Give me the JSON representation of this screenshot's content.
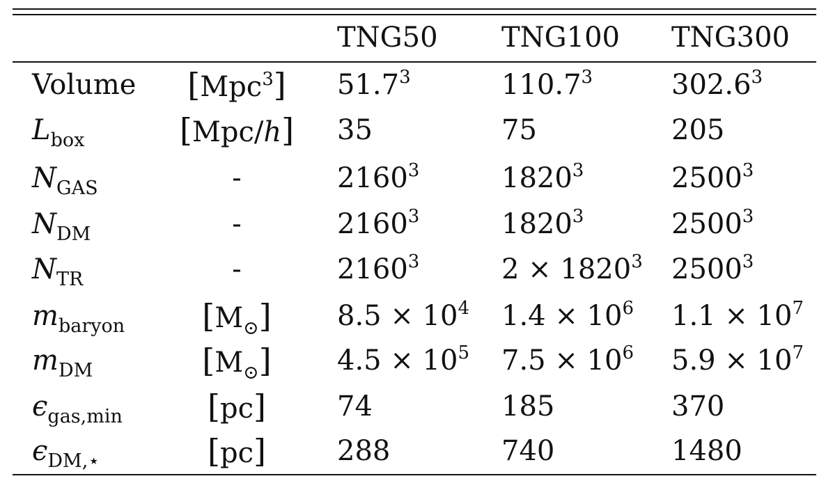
{
  "table": {
    "columns": [
      "TNG50",
      "TNG100",
      "TNG300"
    ],
    "rows": [
      {
        "label": "Volume",
        "unit": "Mpc",
        "unit_sup": "3",
        "unit_it": "",
        "v": [
          {
            "b": "51.7",
            "e": "3"
          },
          {
            "b": "110.7",
            "e": "3"
          },
          {
            "b": "302.6",
            "e": "3"
          }
        ]
      },
      {
        "label": "L",
        "label_sub": "box",
        "unit": "Mpc/",
        "unit_sup": "",
        "unit_it": "h",
        "v": [
          {
            "b": "35",
            "e": ""
          },
          {
            "b": "75",
            "e": ""
          },
          {
            "b": "205",
            "e": ""
          }
        ]
      },
      {
        "label": "N",
        "label_sub": "GAS",
        "unit": "-",
        "v": [
          {
            "b": "2160",
            "e": "3"
          },
          {
            "b": "1820",
            "e": "3"
          },
          {
            "b": "2500",
            "e": "3"
          }
        ]
      },
      {
        "label": "N",
        "label_sub": "DM",
        "unit": "-",
        "v": [
          {
            "b": "2160",
            "e": "3"
          },
          {
            "b": "1820",
            "e": "3"
          },
          {
            "b": "2500",
            "e": "3"
          }
        ]
      },
      {
        "label": "N",
        "label_sub": "TR",
        "unit": "-",
        "v": [
          {
            "b": "2160",
            "e": "3"
          },
          {
            "b": "2 × 1820",
            "e": "3"
          },
          {
            "b": "2500",
            "e": "3"
          }
        ]
      },
      {
        "label": "m",
        "label_sub": "baryon",
        "unit": "M",
        "unit_sub": "⊙",
        "unit_sup": "",
        "unit_it": "",
        "v": [
          {
            "b": "8.5 × 10",
            "e": "4"
          },
          {
            "b": "1.4 × 10",
            "e": "6"
          },
          {
            "b": "1.1 × 10",
            "e": "7"
          }
        ]
      },
      {
        "label": "m",
        "label_sub": "DM",
        "unit": "M",
        "unit_sub": "⊙",
        "unit_sup": "",
        "unit_it": "",
        "v": [
          {
            "b": "4.5 × 10",
            "e": "5"
          },
          {
            "b": "7.5 × 10",
            "e": "6"
          },
          {
            "b": "5.9 × 10",
            "e": "7"
          }
        ]
      },
      {
        "label": "ϵ",
        "label_sub": "gas,min",
        "unit": "pc",
        "unit_sup": "",
        "unit_it": "",
        "v": [
          {
            "b": "74",
            "e": ""
          },
          {
            "b": "185",
            "e": ""
          },
          {
            "b": "370",
            "e": ""
          }
        ]
      },
      {
        "label": "ϵ",
        "label_sub": "DM,⋆",
        "unit": "pc",
        "unit_sup": "",
        "unit_it": "",
        "v": [
          {
            "b": "288",
            "e": ""
          },
          {
            "b": "740",
            "e": ""
          },
          {
            "b": "1480",
            "e": ""
          }
        ]
      }
    ]
  }
}
